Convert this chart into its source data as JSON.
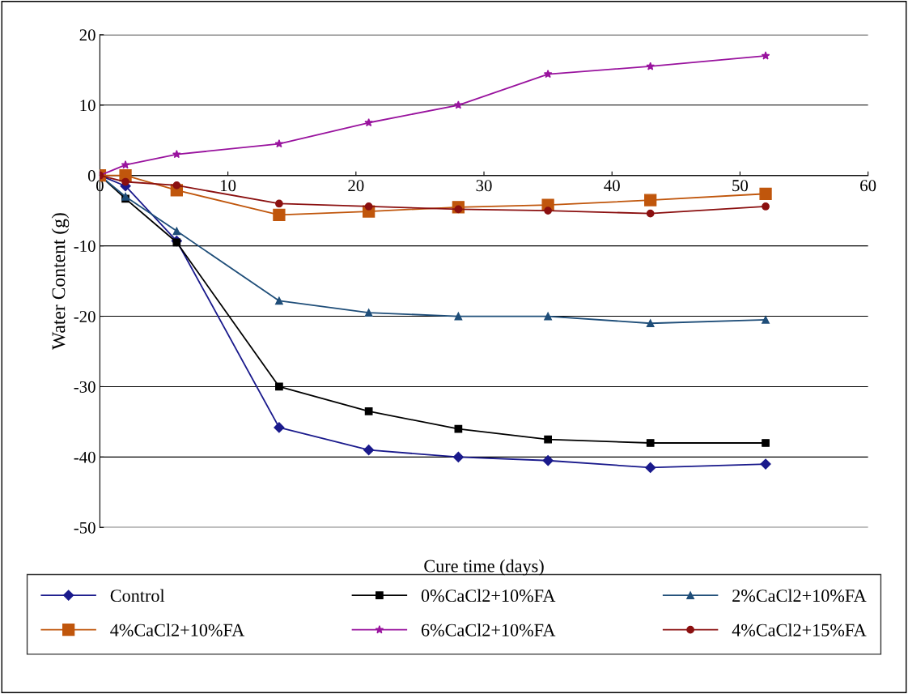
{
  "chart_data": {
    "type": "line",
    "xlabel": "Cure time (days)",
    "ylabel": "Water Content (g)",
    "x": [
      0,
      2,
      6,
      14,
      21,
      28,
      35,
      43,
      52
    ],
    "xlim": [
      0,
      60
    ],
    "xticks": [
      0,
      10,
      20,
      30,
      40,
      50,
      60
    ],
    "ylim": [
      -50,
      20
    ],
    "yticks": [
      -50,
      -40,
      -30,
      -20,
      -10,
      0,
      10,
      20
    ],
    "grid": "y",
    "legend": "bottom",
    "line_style": "solid",
    "series": [
      {
        "name": "Control",
        "color": "#1a1a8c",
        "marker": "diamond",
        "values": [
          0,
          -1.5,
          -9.3,
          -35.8,
          -39,
          -40,
          -40.5,
          -41.5,
          -41
        ]
      },
      {
        "name": "0%CaCl2+10%FA",
        "color": "#000000",
        "marker": "square",
        "values": [
          0,
          -3.3,
          -9.5,
          -30,
          -33.5,
          -36,
          -37.5,
          -38,
          -38
        ]
      },
      {
        "name": "2%CaCl2+10%FA",
        "color": "#1f4e79",
        "marker": "triangle",
        "values": [
          0,
          -3,
          -7.9,
          -17.8,
          -19.5,
          -20,
          -20,
          -21,
          -20.5
        ]
      },
      {
        "name": "4%CaCl2+10%FA",
        "color": "#c0560c",
        "marker": "square",
        "values": [
          0,
          0,
          -2.1,
          -5.6,
          -5.1,
          -4.5,
          -4.2,
          -3.5,
          -2.6
        ]
      },
      {
        "name": "6%CaCl2+10%FA",
        "color": "#99139e",
        "marker": "star",
        "values": [
          0,
          1.5,
          3,
          4.5,
          7.5,
          10,
          14.4,
          15.5,
          17
        ]
      },
      {
        "name": "4%CaCl2+15%FA",
        "color": "#8b1010",
        "marker": "circle",
        "values": [
          0,
          -0.9,
          -1.4,
          -4,
          -4.4,
          -4.8,
          -5,
          -5.4,
          -4.4
        ]
      }
    ]
  }
}
